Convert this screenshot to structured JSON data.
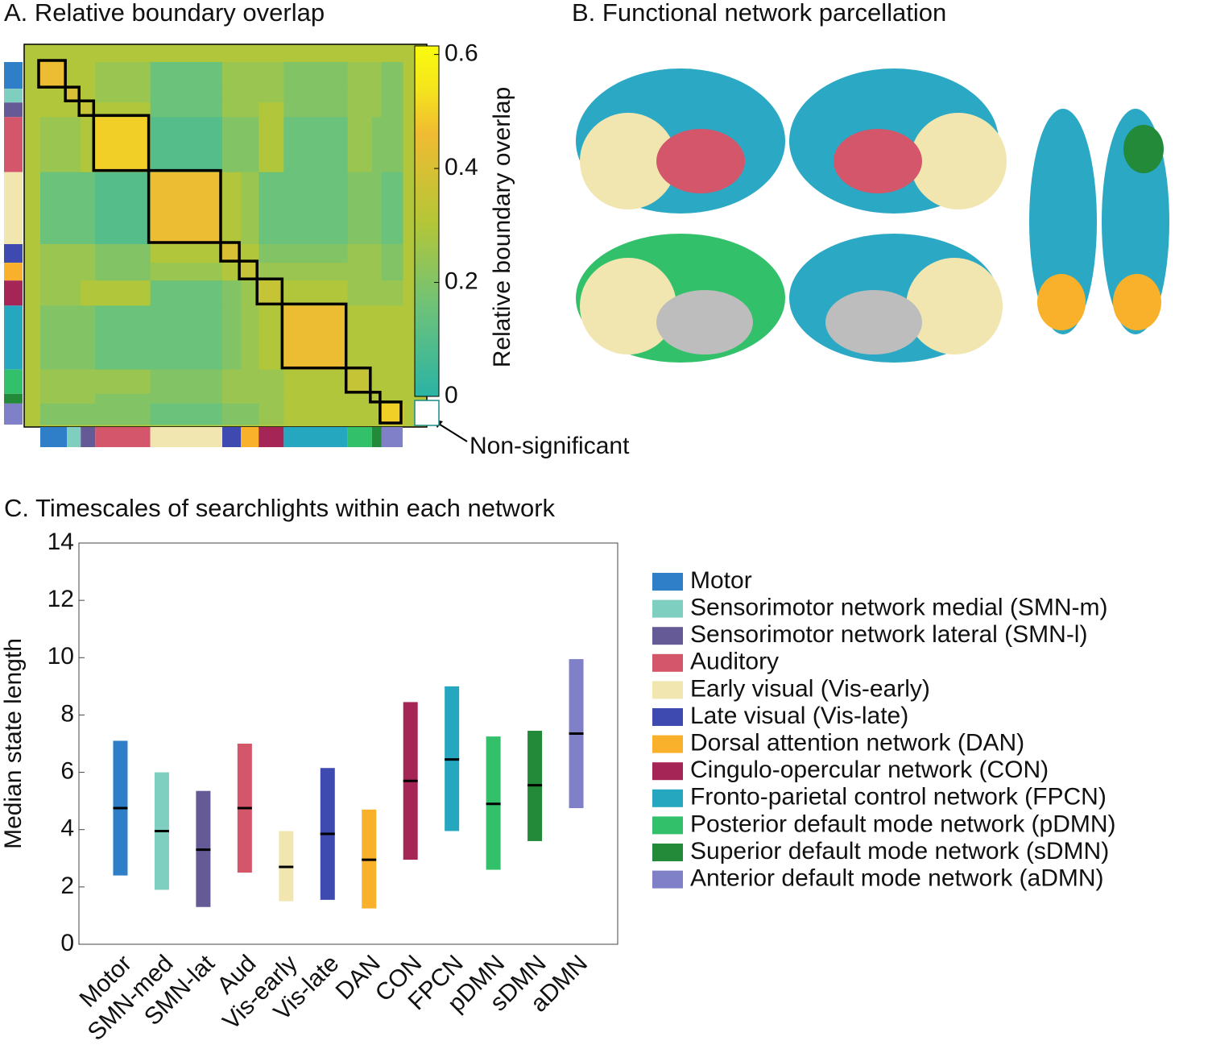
{
  "chart_data": [
    {
      "type": "heatmap",
      "title": "A. Relative boundary overlap",
      "colorbar_label": "Relative boundary overlap",
      "annotation": "Non-significant",
      "clim": [
        0,
        0.615
      ],
      "cticks": [
        0,
        0.2,
        0.4,
        0.6
      ],
      "sizes": [
        33,
        17,
        18,
        68,
        89,
        23,
        22,
        31,
        79,
        30,
        12,
        26
      ],
      "matrix": [
        [
          0.45,
          0.3,
          0.3,
          0.25,
          0.15,
          0.25,
          0.25,
          0.25,
          0.2,
          0.25,
          0.25,
          0.2
        ],
        [
          0.3,
          0.4,
          0.3,
          0.25,
          0.15,
          0.25,
          0.25,
          0.25,
          0.2,
          0.25,
          0.25,
          0.2
        ],
        [
          0.3,
          0.3,
          0.35,
          0.3,
          0.15,
          0.25,
          0.25,
          0.3,
          0.2,
          0.25,
          0.25,
          0.2
        ],
        [
          0.25,
          0.25,
          0.3,
          0.5,
          0.1,
          0.2,
          0.2,
          0.3,
          0.15,
          0.25,
          0.2,
          0.2
        ],
        [
          0.15,
          0.15,
          0.15,
          0.1,
          0.45,
          0.3,
          0.25,
          0.15,
          0.15,
          0.2,
          0.2,
          0.15
        ],
        [
          0.25,
          0.25,
          0.25,
          0.2,
          0.3,
          0.4,
          0.3,
          0.2,
          0.2,
          0.25,
          0.25,
          0.2
        ],
        [
          0.25,
          0.25,
          0.25,
          0.2,
          0.25,
          0.3,
          0.35,
          0.25,
          0.25,
          0.25,
          0.25,
          0.2
        ],
        [
          0.25,
          0.25,
          0.3,
          0.3,
          0.15,
          0.2,
          0.25,
          0.35,
          0.3,
          0.25,
          0.25,
          0.25
        ],
        [
          0.2,
          0.2,
          0.2,
          0.15,
          0.15,
          0.2,
          0.25,
          0.3,
          0.45,
          0.3,
          0.3,
          0.3
        ],
        [
          0.25,
          0.25,
          0.25,
          0.25,
          0.2,
          0.25,
          0.25,
          0.25,
          0.3,
          0.35,
          0.3,
          0.3
        ],
        [
          0.25,
          0.25,
          0.25,
          0.2,
          0.2,
          0.25,
          0.25,
          0.25,
          0.3,
          0.3,
          0.3,
          0.3
        ],
        [
          0.2,
          0.2,
          0.2,
          0.2,
          0.15,
          0.2,
          0.2,
          0.25,
          0.3,
          0.3,
          0.3,
          0.5
        ]
      ]
    },
    {
      "type": "range",
      "title": "C. Timescales of searchlights within each network",
      "ylabel": "Median state length",
      "categories": [
        "Motor",
        "SMN-med",
        "SMN-lat",
        "Aud",
        "Vis-early",
        "Vis-late",
        "DAN",
        "CON",
        "FPCN",
        "pDMN",
        "sDMN",
        "aDMN"
      ],
      "legend": [
        "Motor",
        "Sensorimotor network medial (SMN-m)",
        "Sensorimotor network lateral (SMN-l)",
        "Auditory",
        "Early visual (Vis-early)",
        "Late visual (Vis-late)",
        "Dorsal attention network (DAN)",
        "Cingulo-opercular network (CON)",
        "Fronto-parietal control network (FPCN)",
        "Posterior default mode network (pDMN)",
        "Superior default mode network (sDMN)",
        "Anterior default mode network (aDMN)"
      ],
      "colors": [
        "#2f7fc8",
        "#7fcfc0",
        "#655a96",
        "#d4566a",
        "#f2e6b0",
        "#3f4ab0",
        "#f9b02a",
        "#a62557",
        "#25a7bf",
        "#33c06a",
        "#238a3a",
        "#8080c8"
      ],
      "low": [
        2.4,
        1.9,
        1.3,
        2.5,
        1.5,
        1.55,
        1.25,
        2.95,
        3.95,
        2.6,
        3.6,
        4.75
      ],
      "high": [
        7.1,
        6.0,
        5.35,
        7.0,
        3.95,
        6.15,
        4.7,
        8.45,
        9.0,
        7.25,
        7.45,
        9.95
      ],
      "median": [
        4.75,
        3.95,
        3.3,
        4.75,
        2.7,
        3.85,
        2.95,
        5.7,
        6.45,
        4.9,
        5.55,
        7.35
      ],
      "ylim": [
        0,
        14
      ],
      "yticks": [
        0,
        2,
        4,
        6,
        8,
        10,
        12,
        14
      ]
    }
  ],
  "panel_b": {
    "title": "B. Functional network parcellation"
  }
}
